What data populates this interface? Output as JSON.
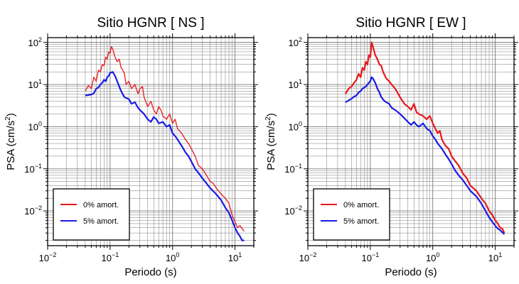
{
  "chart_data": [
    {
      "type": "line",
      "title": "Sitio HGNR [ NS ]",
      "xlabel": "Periodo (s)",
      "ylabel_base": "PSA (cm/s",
      "ylabel_exp": "2",
      "ylabel_tail": ")",
      "xscale": "log",
      "yscale": "log",
      "xlim": [
        0.01,
        20
      ],
      "ylim": [
        0.0015,
        130
      ],
      "grid": true,
      "legend_position": "lower-left",
      "x_ticks": [
        {
          "value": 0.01,
          "base": "10",
          "exp": "−2"
        },
        {
          "value": 0.1,
          "base": "10",
          "exp": "−1"
        },
        {
          "value": 1,
          "base": "10",
          "exp": "0"
        },
        {
          "value": 10,
          "base": "10",
          "exp": "1"
        }
      ],
      "y_ticks": [
        {
          "value": 0.01,
          "base": "10",
          "exp": "−2"
        },
        {
          "value": 0.1,
          "base": "10",
          "exp": "−1"
        },
        {
          "value": 1,
          "base": "10",
          "exp": "0"
        },
        {
          "value": 10,
          "base": "10",
          "exp": "1"
        },
        {
          "value": 100,
          "base": "10",
          "exp": "2"
        }
      ],
      "series": [
        {
          "name": "0% amort.",
          "color": "#e8171b",
          "points": [
            [
              0.04,
              7
            ],
            [
              0.045,
              9.5
            ],
            [
              0.05,
              8
            ],
            [
              0.055,
              15
            ],
            [
              0.06,
              12
            ],
            [
              0.065,
              22
            ],
            [
              0.07,
              20
            ],
            [
              0.075,
              30
            ],
            [
              0.08,
              28
            ],
            [
              0.085,
              45
            ],
            [
              0.09,
              40
            ],
            [
              0.095,
              60
            ],
            [
              0.1,
              55
            ],
            [
              0.105,
              80
            ],
            [
              0.11,
              70
            ],
            [
              0.12,
              45
            ],
            [
              0.13,
              35
            ],
            [
              0.14,
              40
            ],
            [
              0.15,
              25
            ],
            [
              0.16,
              22
            ],
            [
              0.17,
              18
            ],
            [
              0.18,
              10
            ],
            [
              0.2,
              12
            ],
            [
              0.22,
              8
            ],
            [
              0.25,
              10
            ],
            [
              0.28,
              6
            ],
            [
              0.3,
              8
            ],
            [
              0.33,
              9
            ],
            [
              0.35,
              5
            ],
            [
              0.4,
              3
            ],
            [
              0.45,
              4
            ],
            [
              0.5,
              2.5
            ],
            [
              0.55,
              2
            ],
            [
              0.6,
              3
            ],
            [
              0.65,
              2.5
            ],
            [
              0.7,
              1.8
            ],
            [
              0.8,
              1.5
            ],
            [
              0.9,
              2
            ],
            [
              1.0,
              1.2
            ],
            [
              1.1,
              1.5
            ],
            [
              1.2,
              0.9
            ],
            [
              1.4,
              0.7
            ],
            [
              1.6,
              0.5
            ],
            [
              1.8,
              0.4
            ],
            [
              2.0,
              0.3
            ],
            [
              2.3,
              0.2
            ],
            [
              2.6,
              0.12
            ],
            [
              3.0,
              0.1
            ],
            [
              3.5,
              0.07
            ],
            [
              4.0,
              0.05
            ],
            [
              4.5,
              0.045
            ],
            [
              5.0,
              0.035
            ],
            [
              6.0,
              0.025
            ],
            [
              7.0,
              0.02
            ],
            [
              8.0,
              0.015
            ],
            [
              9.0,
              0.008
            ],
            [
              10.0,
              0.0055
            ],
            [
              11.0,
              0.004
            ],
            [
              12.0,
              0.0045
            ],
            [
              14.0,
              0.0033
            ]
          ]
        },
        {
          "name": "5% amort.",
          "color": "#1a1ae6",
          "points": [
            [
              0.04,
              5.5
            ],
            [
              0.05,
              5.8
            ],
            [
              0.055,
              6.2
            ],
            [
              0.06,
              8
            ],
            [
              0.065,
              8.5
            ],
            [
              0.07,
              10
            ],
            [
              0.075,
              11
            ],
            [
              0.08,
              13
            ],
            [
              0.085,
              12
            ],
            [
              0.09,
              15
            ],
            [
              0.095,
              16
            ],
            [
              0.1,
              19
            ],
            [
              0.11,
              20
            ],
            [
              0.12,
              16
            ],
            [
              0.13,
              12
            ],
            [
              0.14,
              9
            ],
            [
              0.15,
              7
            ],
            [
              0.17,
              5
            ],
            [
              0.2,
              4.5
            ],
            [
              0.22,
              3.5
            ],
            [
              0.25,
              3.8
            ],
            [
              0.28,
              2.8
            ],
            [
              0.3,
              2.5
            ],
            [
              0.35,
              2
            ],
            [
              0.4,
              1.5
            ],
            [
              0.45,
              1.3
            ],
            [
              0.5,
              1.7
            ],
            [
              0.55,
              1.5
            ],
            [
              0.6,
              1.2
            ],
            [
              0.7,
              1.3
            ],
            [
              0.8,
              1
            ],
            [
              0.9,
              1.1
            ],
            [
              1.0,
              0.7
            ],
            [
              1.1,
              0.6
            ],
            [
              1.2,
              0.5
            ],
            [
              1.4,
              0.35
            ],
            [
              1.6,
              0.25
            ],
            [
              1.8,
              0.2
            ],
            [
              2.0,
              0.15
            ],
            [
              2.3,
              0.1
            ],
            [
              2.6,
              0.08
            ],
            [
              3.0,
              0.06
            ],
            [
              3.5,
              0.045
            ],
            [
              4.0,
              0.035
            ],
            [
              5.0,
              0.025
            ],
            [
              6.0,
              0.018
            ],
            [
              7.0,
              0.012
            ],
            [
              8.0,
              0.009
            ],
            [
              9.0,
              0.006
            ],
            [
              10.0,
              0.004
            ],
            [
              11.0,
              0.003
            ],
            [
              12.0,
              0.0025
            ],
            [
              13.0,
              0.002
            ],
            [
              14.0,
              0.002
            ]
          ]
        }
      ]
    },
    {
      "type": "line",
      "title": "Sitio HGNR [ EW ]",
      "xlabel": "Periodo (s)",
      "ylabel_base": "PSA (cm/s",
      "ylabel_exp": "2",
      "ylabel_tail": ")",
      "xscale": "log",
      "yscale": "log",
      "xlim": [
        0.01,
        20
      ],
      "ylim": [
        0.0015,
        130
      ],
      "grid": true,
      "legend_position": "lower-left",
      "x_ticks": [
        {
          "value": 0.01,
          "base": "10",
          "exp": "−2"
        },
        {
          "value": 0.1,
          "base": "10",
          "exp": "−1"
        },
        {
          "value": 1,
          "base": "10",
          "exp": "0"
        },
        {
          "value": 10,
          "base": "10",
          "exp": "1"
        }
      ],
      "y_ticks": [
        {
          "value": 0.01,
          "base": "10",
          "exp": "−2"
        },
        {
          "value": 0.1,
          "base": "10",
          "exp": "−1"
        },
        {
          "value": 1,
          "base": "10",
          "exp": "0"
        },
        {
          "value": 10,
          "base": "10",
          "exp": "1"
        },
        {
          "value": 100,
          "base": "10",
          "exp": "2"
        }
      ],
      "series": [
        {
          "name": "0% amort.",
          "color": "#e8171b",
          "points": [
            [
              0.04,
              6
            ],
            [
              0.045,
              8
            ],
            [
              0.05,
              9
            ],
            [
              0.055,
              11
            ],
            [
              0.06,
              13
            ],
            [
              0.065,
              18
            ],
            [
              0.07,
              15
            ],
            [
              0.075,
              25
            ],
            [
              0.08,
              22
            ],
            [
              0.085,
              35
            ],
            [
              0.09,
              30
            ],
            [
              0.095,
              50
            ],
            [
              0.1,
              45
            ],
            [
              0.105,
              100
            ],
            [
              0.11,
              80
            ],
            [
              0.12,
              50
            ],
            [
              0.13,
              40
            ],
            [
              0.14,
              30
            ],
            [
              0.15,
              28
            ],
            [
              0.16,
              20
            ],
            [
              0.18,
              14
            ],
            [
              0.2,
              12
            ],
            [
              0.22,
              10
            ],
            [
              0.25,
              8
            ],
            [
              0.28,
              6
            ],
            [
              0.3,
              5
            ],
            [
              0.35,
              3.5
            ],
            [
              0.4,
              3
            ],
            [
              0.45,
              2.5
            ],
            [
              0.5,
              3.5
            ],
            [
              0.55,
              2.2
            ],
            [
              0.6,
              2
            ],
            [
              0.7,
              1.8
            ],
            [
              0.8,
              1.5
            ],
            [
              0.9,
              1.8
            ],
            [
              1.0,
              1.2
            ],
            [
              1.1,
              0.9
            ],
            [
              1.2,
              0.7
            ],
            [
              1.3,
              0.8
            ],
            [
              1.4,
              0.5
            ],
            [
              1.6,
              0.35
            ],
            [
              1.8,
              0.3
            ],
            [
              2.0,
              0.2
            ],
            [
              2.3,
              0.15
            ],
            [
              2.6,
              0.12
            ],
            [
              3.0,
              0.08
            ],
            [
              3.5,
              0.06
            ],
            [
              4.0,
              0.04
            ],
            [
              5.0,
              0.03
            ],
            [
              6.0,
              0.02
            ],
            [
              7.0,
              0.015
            ],
            [
              8.0,
              0.01
            ],
            [
              9.0,
              0.008
            ],
            [
              10.0,
              0.006
            ],
            [
              11.0,
              0.005
            ],
            [
              12.0,
              0.004
            ],
            [
              13.0,
              0.0038
            ],
            [
              14.0,
              0.003
            ]
          ]
        },
        {
          "name": "5% amort.",
          "color": "#1a1ae6",
          "points": [
            [
              0.04,
              3.8
            ],
            [
              0.045,
              4.2
            ],
            [
              0.05,
              4.6
            ],
            [
              0.055,
              5.2
            ],
            [
              0.06,
              5.5
            ],
            [
              0.065,
              6.5
            ],
            [
              0.07,
              7
            ],
            [
              0.075,
              8
            ],
            [
              0.08,
              8.5
            ],
            [
              0.085,
              9
            ],
            [
              0.09,
              10
            ],
            [
              0.095,
              11
            ],
            [
              0.1,
              12
            ],
            [
              0.105,
              15
            ],
            [
              0.11,
              14
            ],
            [
              0.12,
              11
            ],
            [
              0.13,
              8
            ],
            [
              0.14,
              6.5
            ],
            [
              0.15,
              5
            ],
            [
              0.17,
              4
            ],
            [
              0.2,
              3.5
            ],
            [
              0.22,
              2.8
            ],
            [
              0.25,
              2.5
            ],
            [
              0.3,
              2
            ],
            [
              0.35,
              1.6
            ],
            [
              0.4,
              1.3
            ],
            [
              0.45,
              1.1
            ],
            [
              0.5,
              1.3
            ],
            [
              0.55,
              1.1
            ],
            [
              0.6,
              1
            ],
            [
              0.7,
              1.2
            ],
            [
              0.8,
              0.9
            ],
            [
              0.9,
              0.8
            ],
            [
              1.0,
              0.6
            ],
            [
              1.1,
              0.5
            ],
            [
              1.2,
              0.4
            ],
            [
              1.4,
              0.3
            ],
            [
              1.6,
              0.22
            ],
            [
              1.8,
              0.17
            ],
            [
              2.0,
              0.13
            ],
            [
              2.3,
              0.09
            ],
            [
              2.6,
              0.07
            ],
            [
              3.0,
              0.055
            ],
            [
              3.5,
              0.04
            ],
            [
              4.0,
              0.03
            ],
            [
              5.0,
              0.022
            ],
            [
              6.0,
              0.015
            ],
            [
              7.0,
              0.01
            ],
            [
              8.0,
              0.007
            ],
            [
              9.0,
              0.0055
            ],
            [
              10.0,
              0.0045
            ],
            [
              11.0,
              0.0038
            ],
            [
              12.0,
              0.0035
            ],
            [
              14.0,
              0.0028
            ]
          ]
        }
      ]
    }
  ]
}
